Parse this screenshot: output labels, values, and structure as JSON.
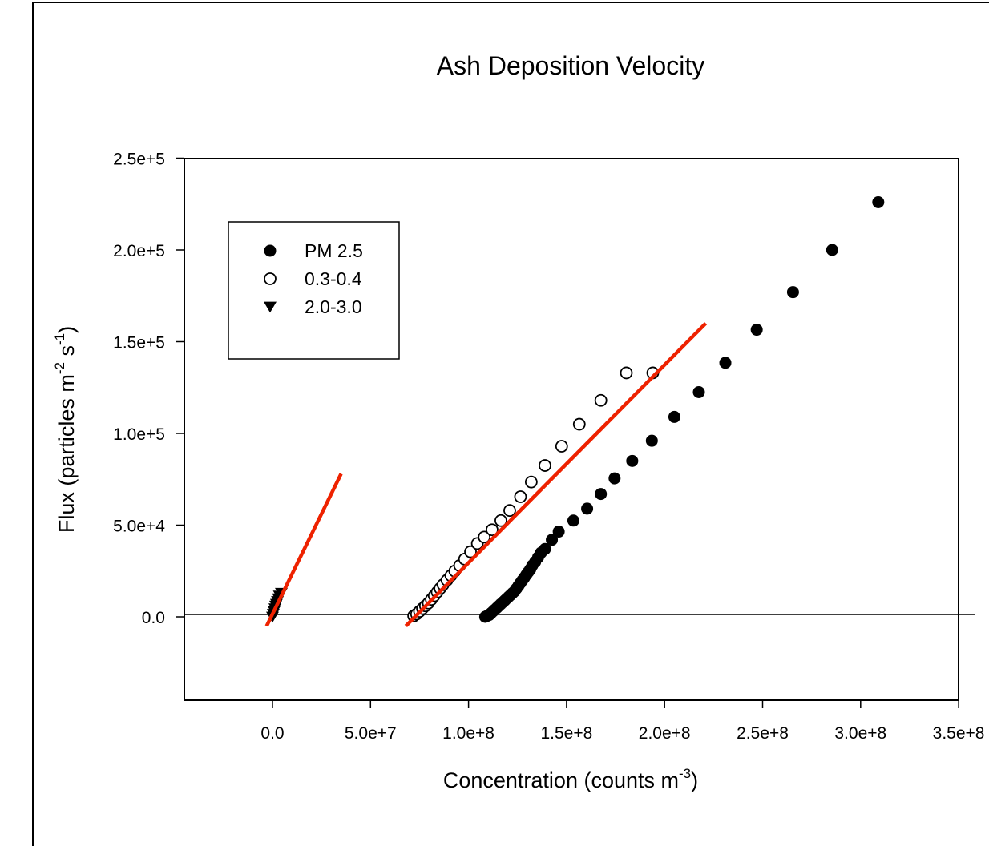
{
  "chart_data": {
    "type": "scatter",
    "title": "Ash Deposition Velocity",
    "xlabel": "Concentration (counts m",
    "xlabel_sup": "-3",
    "xlabel_end": ")",
    "ylabel": "Flux (particles m",
    "ylabel_sup1": "-2",
    "ylabel_mid": " s",
    "ylabel_sup2": "-1",
    "ylabel_end": ")",
    "xlim": [
      -45000000,
      350000000
    ],
    "ylim": [
      -46000000,
      250000
    ],
    "y_axis_range": [
      -46000,
      250000
    ],
    "x_ticks": [
      0,
      50000000,
      100000000,
      150000000,
      200000000,
      250000000,
      300000000,
      350000000
    ],
    "x_tick_labels": [
      "0.0",
      "5.0e+7",
      "1.0e+8",
      "1.5e+8",
      "2.0e+8",
      "2.5e+8",
      "3.0e+8",
      "3.5e+8"
    ],
    "y_ticks": [
      0,
      50000,
      100000,
      150000,
      200000,
      250000
    ],
    "y_tick_labels": [
      "0.0",
      "5.0e+4",
      "1.0e+5",
      "1.5e+5",
      "2.0e+5",
      "2.5e+5"
    ],
    "grid": false,
    "legend_position": "top-left",
    "zero_line": true,
    "colors": {
      "fit_line": "#ee2200",
      "marker": "#000000"
    },
    "series": [
      {
        "name": "PM 2.5",
        "marker": "filled-circle",
        "points": [
          [
            108500000,
            0
          ],
          [
            109500000,
            500
          ],
          [
            110500000,
            1000
          ],
          [
            111500000,
            2000
          ],
          [
            112500000,
            3000
          ],
          [
            113500000,
            4000
          ],
          [
            114500000,
            5000
          ],
          [
            115500000,
            6000
          ],
          [
            116500000,
            7000
          ],
          [
            117500000,
            8000
          ],
          [
            118500000,
            9000
          ],
          [
            119500000,
            10000
          ],
          [
            120500000,
            11000
          ],
          [
            121500000,
            12000
          ],
          [
            122500000,
            13000
          ],
          [
            123500000,
            14000
          ],
          [
            124500000,
            15500
          ],
          [
            125500000,
            17000
          ],
          [
            126500000,
            18500
          ],
          [
            127500000,
            20000
          ],
          [
            128500000,
            21500
          ],
          [
            129500000,
            23000
          ],
          [
            130500000,
            24500
          ],
          [
            131500000,
            26000
          ],
          [
            132500000,
            28000
          ],
          [
            134000000,
            30000
          ],
          [
            135500000,
            32500
          ],
          [
            137000000,
            35000
          ],
          [
            139000000,
            37000
          ],
          [
            142500000,
            42000
          ],
          [
            146000000,
            46500
          ],
          [
            153500000,
            52500
          ],
          [
            160500000,
            59000
          ],
          [
            167500000,
            67000
          ],
          [
            174500000,
            75500
          ],
          [
            183500000,
            85000
          ],
          [
            193500000,
            96000
          ],
          [
            205000000,
            109000
          ],
          [
            217500000,
            122500
          ],
          [
            231000000,
            138500
          ],
          [
            247000000,
            156500
          ],
          [
            265500000,
            177000
          ],
          [
            285500000,
            200000
          ],
          [
            309000000,
            226000
          ]
        ]
      },
      {
        "name": "0.3-0.4",
        "marker": "open-circle",
        "points": [
          [
            72000000,
            500
          ],
          [
            73500000,
            1500
          ],
          [
            75000000,
            3000
          ],
          [
            76500000,
            4500
          ],
          [
            78000000,
            6000
          ],
          [
            79500000,
            7500
          ],
          [
            81000000,
            9500
          ],
          [
            82500000,
            11500
          ],
          [
            84000000,
            13500
          ],
          [
            85500000,
            15500
          ],
          [
            87000000,
            17500
          ],
          [
            89000000,
            20000
          ],
          [
            91000000,
            22500
          ],
          [
            93000000,
            25000
          ],
          [
            95500000,
            28000
          ],
          [
            98000000,
            31500
          ],
          [
            101000000,
            35500
          ],
          [
            104500000,
            40000
          ],
          [
            108000000,
            43500
          ],
          [
            112000000,
            47500
          ],
          [
            116500000,
            52500
          ],
          [
            121000000,
            58000
          ],
          [
            126500000,
            65500
          ],
          [
            132000000,
            73500
          ],
          [
            139000000,
            82500
          ],
          [
            147500000,
            93000
          ],
          [
            156500000,
            105000
          ],
          [
            167500000,
            118000
          ],
          [
            180500000,
            133000
          ],
          [
            194000000,
            133000
          ]
        ]
      },
      {
        "name": "2.0-3.0",
        "marker": "filled-triangle-down",
        "points": [
          [
            0,
            0
          ],
          [
            400000,
            1500
          ],
          [
            800000,
            3000
          ],
          [
            1200000,
            4500
          ],
          [
            1600000,
            6000
          ],
          [
            2000000,
            7000
          ],
          [
            2500000,
            8500
          ],
          [
            3000000,
            10000
          ],
          [
            3500000,
            11500
          ],
          [
            4500000,
            13000
          ]
        ]
      }
    ],
    "fit_lines": [
      {
        "from": [
          -3000000,
          -5000
        ],
        "to": [
          35000000,
          78000
        ]
      },
      {
        "from": [
          68000000,
          -5000
        ],
        "to": [
          221000000,
          160000
        ]
      }
    ]
  }
}
